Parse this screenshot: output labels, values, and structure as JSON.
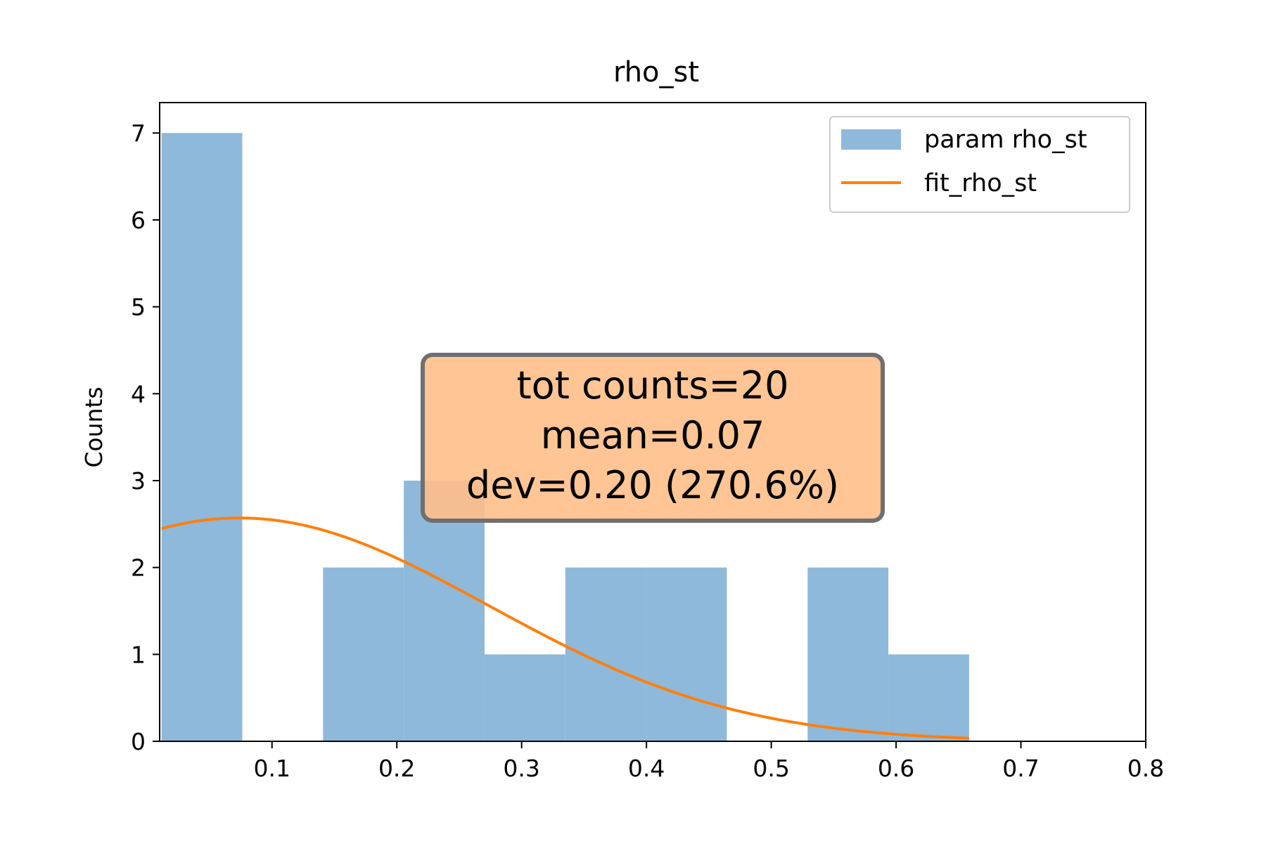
{
  "chart_data": {
    "type": "bar",
    "title": "rho_st",
    "xlabel": "",
    "ylabel": "Counts",
    "xlim": [
      0.01,
      0.8
    ],
    "ylim": [
      0,
      7.35
    ],
    "x_ticks": [
      0.1,
      0.2,
      0.3,
      0.4,
      0.5,
      0.6,
      0.7,
      0.8
    ],
    "x_tick_labels": [
      "0.1",
      "0.2",
      "0.3",
      "0.4",
      "0.5",
      "0.6",
      "0.7",
      "0.8"
    ],
    "y_ticks": [
      0,
      1,
      2,
      3,
      4,
      5,
      6,
      7
    ],
    "y_tick_labels": [
      "0",
      "1",
      "2",
      "3",
      "4",
      "5",
      "6",
      "7"
    ],
    "grid": false,
    "legend_position": "top-right",
    "series": [
      {
        "name": "param rho_st",
        "kind": "histogram",
        "color": "#8fb9da",
        "bin_edges": [
          0.0115,
          0.0762,
          0.1409,
          0.2056,
          0.2703,
          0.335,
          0.3997,
          0.4644,
          0.5291,
          0.5938,
          0.6585
        ],
        "counts": [
          7,
          0,
          2,
          3,
          1,
          2,
          2,
          0,
          2,
          1
        ]
      },
      {
        "name": "fit_rho_st",
        "kind": "line",
        "color": "#ff7f0e",
        "x_range": [
          0.0115,
          0.6585
        ],
        "gaussian_amplitude": 2.57,
        "gaussian_mean": 0.074,
        "gaussian_sigma": 0.2
      }
    ],
    "annotation": {
      "lines": [
        "tot counts=20",
        "mean=0.07",
        "dev=0.20 (270.6%)"
      ],
      "box_color": "#ffbf8a",
      "edge_color": "#6f6f6f",
      "position": "center"
    }
  }
}
